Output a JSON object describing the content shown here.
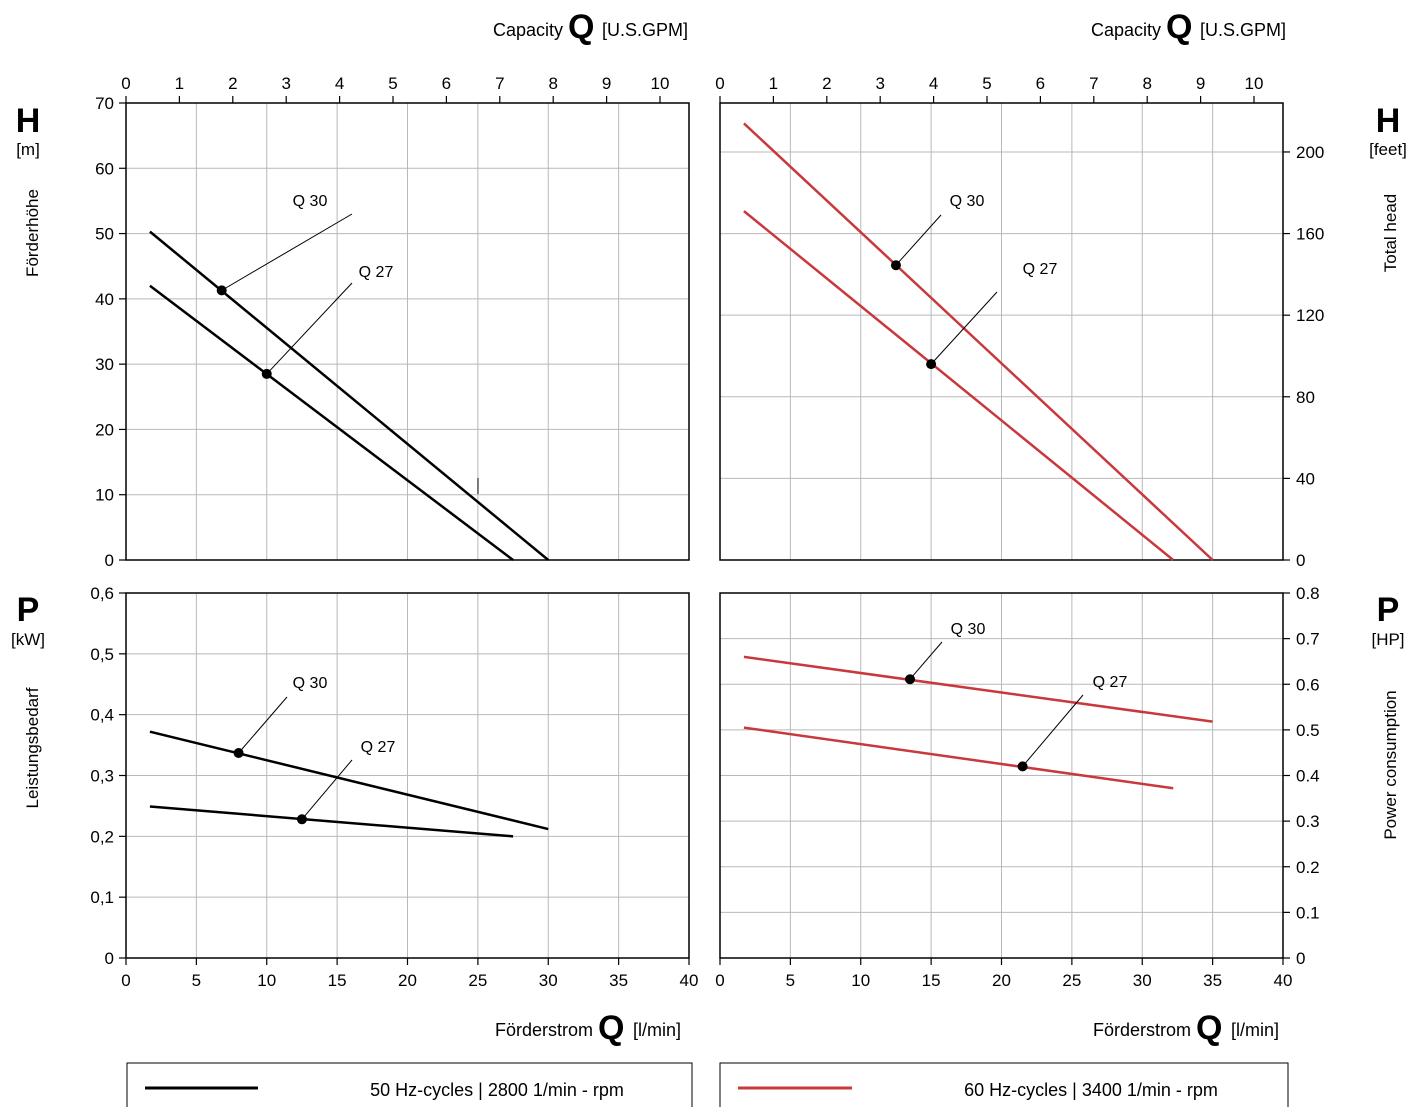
{
  "colors": {
    "hz50": "#000000",
    "hz60": "#c8383c",
    "grid": "#b9b9b9"
  },
  "header": {
    "left": {
      "label": "Capacity",
      "symbol": "Q",
      "unit": "[U.S.GPM]"
    },
    "right": {
      "label": "Capacity",
      "symbol": "Q",
      "unit": "[U.S.GPM]"
    }
  },
  "footer": {
    "left": {
      "label": "Förderstrom",
      "symbol": "Q",
      "unit": "[l/min]"
    },
    "right": {
      "label": "Förderstrom",
      "symbol": "Q",
      "unit": "[l/min]"
    }
  },
  "side_labels": {
    "h_left": {
      "symbol": "H",
      "unit": "[m]",
      "title": "Förderhöhe"
    },
    "h_right": {
      "symbol": "H",
      "unit": "[feet]",
      "title": "Total head"
    },
    "p_left": {
      "symbol": "P",
      "unit": "[kW]",
      "title": "Leistungsbedarf"
    },
    "p_right": {
      "symbol": "P",
      "unit": "[HP]",
      "title": "Power consumption"
    }
  },
  "axes": {
    "gpm_ticks": [
      "0",
      "1",
      "2",
      "3",
      "4",
      "5",
      "6",
      "7",
      "8",
      "9",
      "10"
    ],
    "lmin_ticks": [
      "0",
      "5",
      "10",
      "15",
      "20",
      "25",
      "30",
      "35",
      "40"
    ],
    "head_m_ticks": [
      "0",
      "10",
      "20",
      "30",
      "40",
      "50",
      "60",
      "70"
    ],
    "head_ft_ticks": [
      "0",
      "40",
      "80",
      "120",
      "160",
      "200"
    ],
    "power_kw_ticks": [
      "0",
      "0,1",
      "0,2",
      "0,3",
      "0,4",
      "0,5",
      "0,6"
    ],
    "power_hp_ticks": [
      "0",
      "0.1",
      "0.2",
      "0.3",
      "0.4",
      "0.5",
      "0.6",
      "0.7",
      "0.8"
    ]
  },
  "legend": {
    "left": {
      "text": "50 Hz-cycles | 2800 1/min - rpm"
    },
    "right": {
      "text": "60 Hz-cycles | 3400 1/min - rpm"
    }
  },
  "chart_data": [
    {
      "type": "line",
      "panel": "head-50hz",
      "xlabel": "Förderstrom Q [l/min]",
      "ylabel": "Förderhöhe H [m]",
      "xlim": [
        0,
        40
      ],
      "ylim": [
        0,
        70
      ],
      "series": [
        {
          "name": "Q 30",
          "x": [
            1.7,
            30
          ],
          "y": [
            50.3,
            0
          ],
          "marker": {
            "x": 6.8,
            "y": 41.3
          }
        },
        {
          "name": "Q 27",
          "x": [
            1.7,
            27.5
          ],
          "y": [
            42,
            0
          ],
          "marker": {
            "x": 10,
            "y": 28.5
          }
        }
      ]
    },
    {
      "type": "line",
      "panel": "head-60hz",
      "xlabel": "Förderstrom Q [l/min]",
      "ylabel": "Total head H [feet]",
      "xlim": [
        0,
        40
      ],
      "ylim": [
        0,
        224
      ],
      "series": [
        {
          "name": "Q 30",
          "x": [
            1.7,
            35
          ],
          "y": [
            214,
            0
          ],
          "marker": {
            "x": 12.5,
            "y": 144.5
          }
        },
        {
          "name": "Q 27",
          "x": [
            1.7,
            32.2
          ],
          "y": [
            171,
            0
          ],
          "marker": {
            "x": 15,
            "y": 96
          }
        }
      ]
    },
    {
      "type": "line",
      "panel": "power-50hz",
      "xlabel": "Förderstrom Q [l/min]",
      "ylabel": "Leistungsbedarf P [kW]",
      "xlim": [
        0,
        40
      ],
      "ylim": [
        0,
        0.6
      ],
      "series": [
        {
          "name": "Q 30",
          "x": [
            1.7,
            30
          ],
          "y": [
            0.372,
            0.212
          ],
          "marker": {
            "x": 8,
            "y": 0.337
          }
        },
        {
          "name": "Q 27",
          "x": [
            1.7,
            27.5
          ],
          "y": [
            0.249,
            0.2
          ],
          "marker": {
            "x": 12.5,
            "y": 0.228
          }
        }
      ]
    },
    {
      "type": "line",
      "panel": "power-60hz",
      "xlabel": "Förderstrom Q [l/min]",
      "ylabel": "Power consumption P [HP]",
      "xlim": [
        0,
        40
      ],
      "ylim": [
        0,
        0.8
      ],
      "series": [
        {
          "name": "Q 30",
          "x": [
            1.7,
            35
          ],
          "y": [
            0.66,
            0.518
          ],
          "marker": {
            "x": 13.5,
            "y": 0.611
          }
        },
        {
          "name": "Q 27",
          "x": [
            1.7,
            32.2
          ],
          "y": [
            0.505,
            0.372
          ],
          "marker": {
            "x": 21.5,
            "y": 0.42
          }
        }
      ]
    }
  ]
}
